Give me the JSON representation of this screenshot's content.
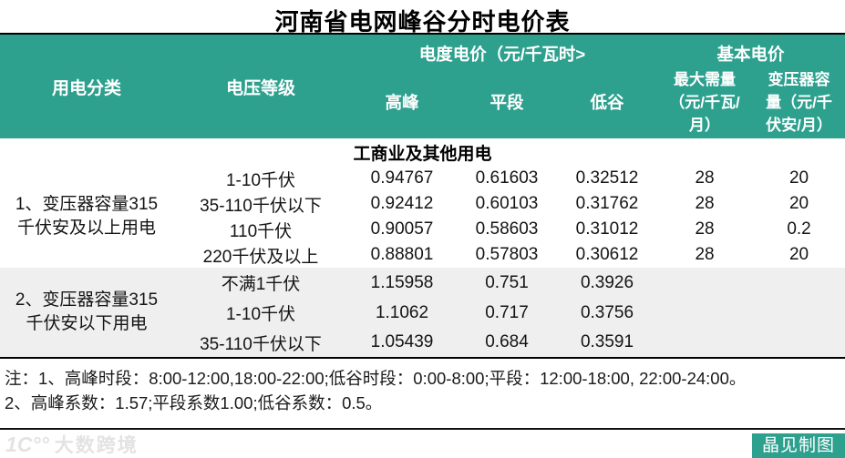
{
  "chart_data": {
    "type": "table",
    "title": "河南省电网峰谷分时电价表",
    "header": {
      "col_usage": "用电分类",
      "col_voltage": "电压等级",
      "group_energy": "电度电价（元/千瓦时>",
      "group_basic": "基本电价",
      "col_peak": "高峰",
      "col_flat": "平段",
      "col_valley": "低谷",
      "col_max_demand": "最大需量（元/千瓦/月）",
      "col_transformer": "变压器容量（元/千伏安/月）"
    },
    "section": "工商业及其他用电",
    "groups": [
      {
        "label": "1、变压器容量315千伏安及以上用电",
        "rows": [
          {
            "voltage": "1-10千伏",
            "peak": "0.94767",
            "flat": "0.61603",
            "valley": "0.32512",
            "max_demand": "28",
            "transformer": "20"
          },
          {
            "voltage": "35-110千伏以下",
            "peak": "0.92412",
            "flat": "0.60103",
            "valley": "0.31762",
            "max_demand": "28",
            "transformer": "20"
          },
          {
            "voltage": "110千伏",
            "peak": "0.90057",
            "flat": "0.58603",
            "valley": "0.31012",
            "max_demand": "28",
            "transformer": "0.2"
          },
          {
            "voltage": "220千伏及以上",
            "peak": "0.88801",
            "flat": "0.57803",
            "valley": "0.30612",
            "max_demand": "28",
            "transformer": "20"
          }
        ]
      },
      {
        "label": "2、变压器容量315千伏安以下用电",
        "rows": [
          {
            "voltage": "不满1千伏",
            "peak": "1.15958",
            "flat": "0.751",
            "valley": "0.3926",
            "max_demand": "",
            "transformer": ""
          },
          {
            "voltage": "1-10千伏",
            "peak": "1.1062",
            "flat": "0.717",
            "valley": "0.3756",
            "max_demand": "",
            "transformer": ""
          },
          {
            "voltage": "35-110千伏以下",
            "peak": "1.05439",
            "flat": "0.684",
            "valley": "0.3591",
            "max_demand": "",
            "transformer": ""
          }
        ]
      }
    ],
    "notes": [
      "注：1、高峰时段：8:00-12:00,18:00-22:00;低谷时段：0:00-8:00;平段：12:00-18:00, 22:00-24:00。",
      "2、高峰系数：1.57;平段系数1.00;低谷系数：0.5。"
    ]
  },
  "footer": {
    "watermark_logo": "1C°°",
    "watermark": "大数跨境",
    "credit": "晶见制图"
  },
  "colors": {
    "teal": "#2da08e",
    "row_gray": "#efefef",
    "title_color": "#000000",
    "credit_bg": "#2da08e"
  }
}
